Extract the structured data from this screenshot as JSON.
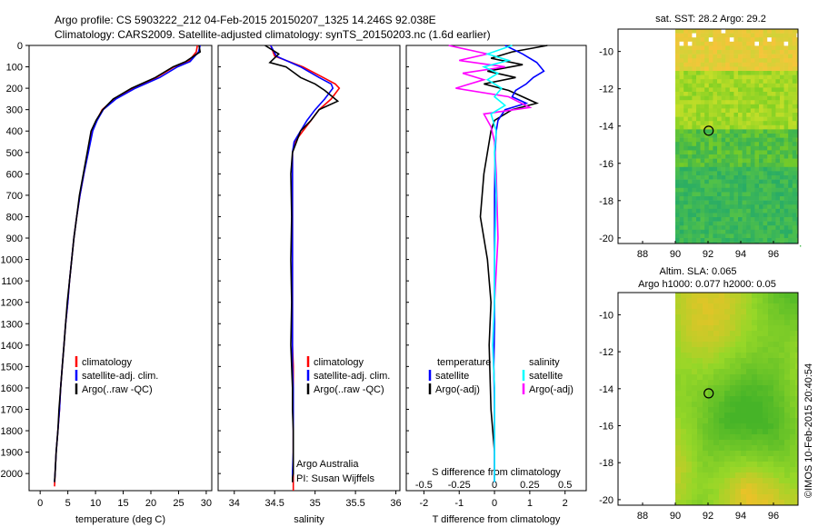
{
  "title_line1": "Argo profile: CS 5903222_212 04-Feb-2015 20150207_1325 14.246S 92.038E",
  "title_line2": "Climatology: CARS2009. Satellite-adjusted climatology: synTS_20150203.nc (1.6d earlier)",
  "side_stamp": "©IMOS 10-Feb-2015 20:40:54",
  "colors": {
    "climatology": "#ff0000",
    "satellite": "#0000ff",
    "argo": "#000000",
    "sal_satellite": "#00ffff",
    "sal_argo": "#ff00ff"
  },
  "depth_axis": {
    "ticks": [
      0,
      100,
      200,
      300,
      400,
      500,
      600,
      700,
      800,
      900,
      1000,
      1100,
      1200,
      1300,
      1400,
      1500,
      1600,
      1700,
      1800,
      1900,
      2000
    ],
    "range": [
      0,
      2080
    ]
  },
  "chart_data": [
    {
      "type": "line",
      "name": "temperature",
      "xlabel": "temperature (deg C)",
      "xlim": [
        -2,
        31
      ],
      "xticks": [
        0,
        5,
        10,
        15,
        20,
        25,
        30
      ],
      "legend": [
        "climatology",
        "satellite-adj. clim.",
        "Argo(..raw -QC)"
      ],
      "series": [
        {
          "name": "climatology",
          "x": [
            28.4,
            28.2,
            26.8,
            24.2,
            21.0,
            16.8,
            13.4,
            11.2,
            10.2,
            9.4,
            8.6,
            7.9,
            7.2,
            6.6,
            6.1,
            5.7,
            5.3,
            5.0,
            4.6,
            4.3,
            4.0,
            3.7,
            3.5,
            3.2,
            2.9,
            2.7,
            2.6
          ],
          "y": [
            0,
            30,
            75,
            100,
            150,
            200,
            250,
            300,
            350,
            400,
            500,
            600,
            700,
            800,
            900,
            1000,
            1100,
            1200,
            1300,
            1400,
            1500,
            1600,
            1700,
            1800,
            1900,
            2000,
            2060
          ]
        },
        {
          "name": "satellite-adj. clim.",
          "x": [
            28.9,
            28.6,
            27.1,
            24.8,
            21.6,
            17.2,
            13.7,
            11.4,
            10.3,
            9.5,
            8.7,
            7.9,
            7.2,
            6.6,
            6.1,
            5.7,
            5.3,
            5.0,
            4.6,
            4.3,
            4.0,
            3.7,
            3.5,
            3.2,
            2.9,
            2.7,
            2.6
          ],
          "y": [
            0,
            30,
            75,
            100,
            150,
            200,
            250,
            300,
            350,
            400,
            500,
            600,
            700,
            800,
            900,
            1000,
            1100,
            1200,
            1300,
            1400,
            1500,
            1600,
            1700,
            1800,
            1900,
            2000,
            2040
          ]
        },
        {
          "name": "Argo(..raw -QC)",
          "x": [
            28.7,
            28.9,
            26.3,
            24.0,
            20.8,
            16.5,
            13.2,
            11.3,
            10.1,
            9.2,
            8.5,
            7.8,
            7.1,
            6.6,
            6.1,
            5.7,
            5.3,
            4.9,
            4.6,
            4.3,
            4.0,
            3.7,
            3.4,
            3.2,
            2.9,
            2.7,
            2.6
          ],
          "y": [
            0,
            30,
            75,
            100,
            150,
            200,
            250,
            300,
            350,
            400,
            500,
            600,
            700,
            800,
            900,
            1000,
            1100,
            1200,
            1300,
            1400,
            1500,
            1600,
            1700,
            1800,
            1900,
            2000,
            2040
          ]
        }
      ]
    },
    {
      "type": "line",
      "name": "salinity",
      "xlabel": "salinity",
      "xlim": [
        33.8,
        36.05
      ],
      "xticks": [
        34,
        34.5,
        35,
        35.5,
        36
      ],
      "legend": [
        "climatology",
        "satellite-adj. clim.",
        "Argo(..raw -QC)"
      ],
      "annotations": [
        "Argo Australia",
        "PI: Susan Wijffels"
      ],
      "series": [
        {
          "name": "climatology",
          "x": [
            34.45,
            34.5,
            34.85,
            35.1,
            35.25,
            35.3,
            35.2,
            35.05,
            34.95,
            34.85,
            34.75,
            34.72,
            34.72,
            34.72,
            34.72,
            34.72,
            34.72,
            34.73,
            34.73,
            34.73,
            34.73,
            34.73,
            34.73,
            34.73,
            34.73,
            34.73
          ],
          "y": [
            0,
            50,
            100,
            150,
            180,
            200,
            250,
            300,
            350,
            400,
            450,
            500,
            600,
            800,
            1000,
            1200,
            1400,
            1500,
            1600,
            1700,
            1800,
            1900,
            2000,
            2040,
            2060,
            2080
          ]
        },
        {
          "name": "satellite-adj. clim.",
          "x": [
            34.45,
            34.52,
            34.82,
            35.05,
            35.2,
            35.22,
            35.12,
            35.0,
            34.9,
            34.82,
            34.74,
            34.72,
            34.72,
            34.72,
            34.72,
            34.72,
            34.72,
            34.72,
            34.73,
            34.73,
            34.73,
            34.73,
            34.72,
            34.72
          ],
          "y": [
            0,
            50,
            100,
            150,
            180,
            200,
            250,
            300,
            350,
            400,
            450,
            500,
            600,
            800,
            1000,
            1200,
            1400,
            1500,
            1600,
            1700,
            1800,
            1900,
            2000,
            2040
          ]
        },
        {
          "name": "Argo(..raw -QC)",
          "x": [
            34.38,
            34.55,
            34.44,
            34.64,
            34.75,
            34.82,
            35.0,
            35.12,
            35.28,
            35.05,
            34.95,
            34.82,
            34.72,
            34.7,
            34.71,
            34.7,
            34.71,
            34.7,
            34.71,
            34.72,
            34.72,
            34.73,
            34.73,
            34.73,
            34.72,
            34.72
          ],
          "y": [
            0,
            40,
            80,
            100,
            130,
            150,
            180,
            210,
            260,
            300,
            350,
            400,
            500,
            600,
            800,
            1000,
            1200,
            1400,
            1500,
            1600,
            1700,
            1800,
            1900,
            2000,
            2020,
            2040
          ]
        }
      ]
    },
    {
      "type": "line",
      "name": "difference",
      "xlabel": "T difference from climatology",
      "xlabel_top": "S difference from climatology",
      "xlim": [
        -2.5,
        2.6
      ],
      "xticks": [
        -2,
        -1,
        0,
        1,
        2
      ],
      "sticks": [
        {
          "pos": -2,
          "label": "-0.5"
        },
        {
          "pos": -1,
          "label": "-0.25"
        },
        {
          "pos": 0,
          "label": "0"
        },
        {
          "pos": 1,
          "label": "0.25"
        },
        {
          "pos": 2,
          "label": "0.5"
        }
      ],
      "legend_titles": [
        "temperature",
        "salinity"
      ],
      "legend": [
        "satellite",
        "Argo(-adj)",
        "satellite",
        "Argo(-adj)"
      ],
      "series": [
        {
          "name": "temperature satellite",
          "x": [
            0.3,
            0.8,
            1.2,
            1.4,
            1.1,
            0.9,
            0.6,
            0.5,
            0.9,
            0.3,
            0.1,
            0.05,
            0.02,
            0.0,
            0.0,
            0.0,
            -0.02,
            0.0,
            0.0,
            0.0,
            0.0
          ],
          "y": [
            0,
            40,
            80,
            120,
            150,
            180,
            210,
            240,
            270,
            300,
            350,
            400,
            500,
            700,
            1000,
            1300,
            1500,
            1700,
            1900,
            2000,
            2040
          ]
        },
        {
          "name": "temperature Argo(-adj)",
          "x": [
            1.5,
            0.5,
            -0.1,
            0.8,
            -0.2,
            0.6,
            -0.3,
            0.4,
            1.2,
            0.5,
            0.0,
            -0.1,
            -0.2,
            -0.3,
            -0.4,
            -0.2,
            -0.1,
            -0.15,
            -0.1,
            0.0,
            0.0
          ],
          "y": [
            0,
            30,
            60,
            90,
            120,
            150,
            180,
            210,
            270,
            300,
            350,
            400,
            500,
            600,
            800,
            1000,
            1200,
            1400,
            1700,
            1900,
            2040
          ]
        },
        {
          "name": "salinity satellite",
          "x": [
            0.5,
            -0.2,
            0.4,
            -0.3,
            0.1,
            -0.2,
            0.2,
            0.0,
            0.3,
            -0.1,
            0.05,
            0.0,
            0.05,
            0.0,
            0.0,
            -0.05,
            0.0,
            0.0,
            0.0,
            0.0
          ],
          "y": [
            0,
            40,
            70,
            100,
            130,
            160,
            200,
            240,
            280,
            320,
            400,
            500,
            700,
            1000,
            1200,
            1400,
            1600,
            1800,
            1900,
            2040
          ]
        },
        {
          "name": "salinity Argo(-adj)",
          "x": [
            -1.3,
            -0.2,
            -1.0,
            0.3,
            -0.9,
            -0.3,
            -1.1,
            0.4,
            1.0,
            -0.3,
            -0.1,
            0.0,
            0.05,
            0.1,
            0.0,
            -0.05,
            0.0,
            0.0,
            0.0
          ],
          "y": [
            0,
            40,
            70,
            100,
            130,
            160,
            200,
            240,
            290,
            320,
            380,
            450,
            600,
            900,
            1200,
            1400,
            1600,
            1800,
            2040
          ]
        }
      ]
    },
    {
      "type": "heatmap",
      "name": "sst_map",
      "title": "sat. SST: 28.2 Argo: 29.2",
      "lon_range": [
        86.5,
        97.5
      ],
      "lat_range": [
        -20.3,
        -8.8
      ],
      "xticks": [
        88,
        90,
        92,
        94,
        96
      ],
      "yticks": [
        -10,
        -12,
        -14,
        -16,
        -18,
        -20
      ],
      "data_lon_range": [
        90,
        97.5
      ],
      "argo_position": {
        "lon": 92.04,
        "lat": -14.25
      }
    },
    {
      "type": "heatmap",
      "name": "sla_map",
      "title_line1": "Altim. SLA: 0.065",
      "title_line2": "Argo h1000: 0.077 h2000: 0.05",
      "lon_range": [
        86.5,
        97.5
      ],
      "lat_range": [
        -20.3,
        -8.8
      ],
      "xticks": [
        88,
        90,
        92,
        94,
        96
      ],
      "yticks": [
        -10,
        -12,
        -14,
        -16,
        -18,
        -20
      ],
      "data_lon_range": [
        90,
        97.5
      ],
      "argo_position": {
        "lon": 92.04,
        "lat": -14.25
      }
    }
  ]
}
